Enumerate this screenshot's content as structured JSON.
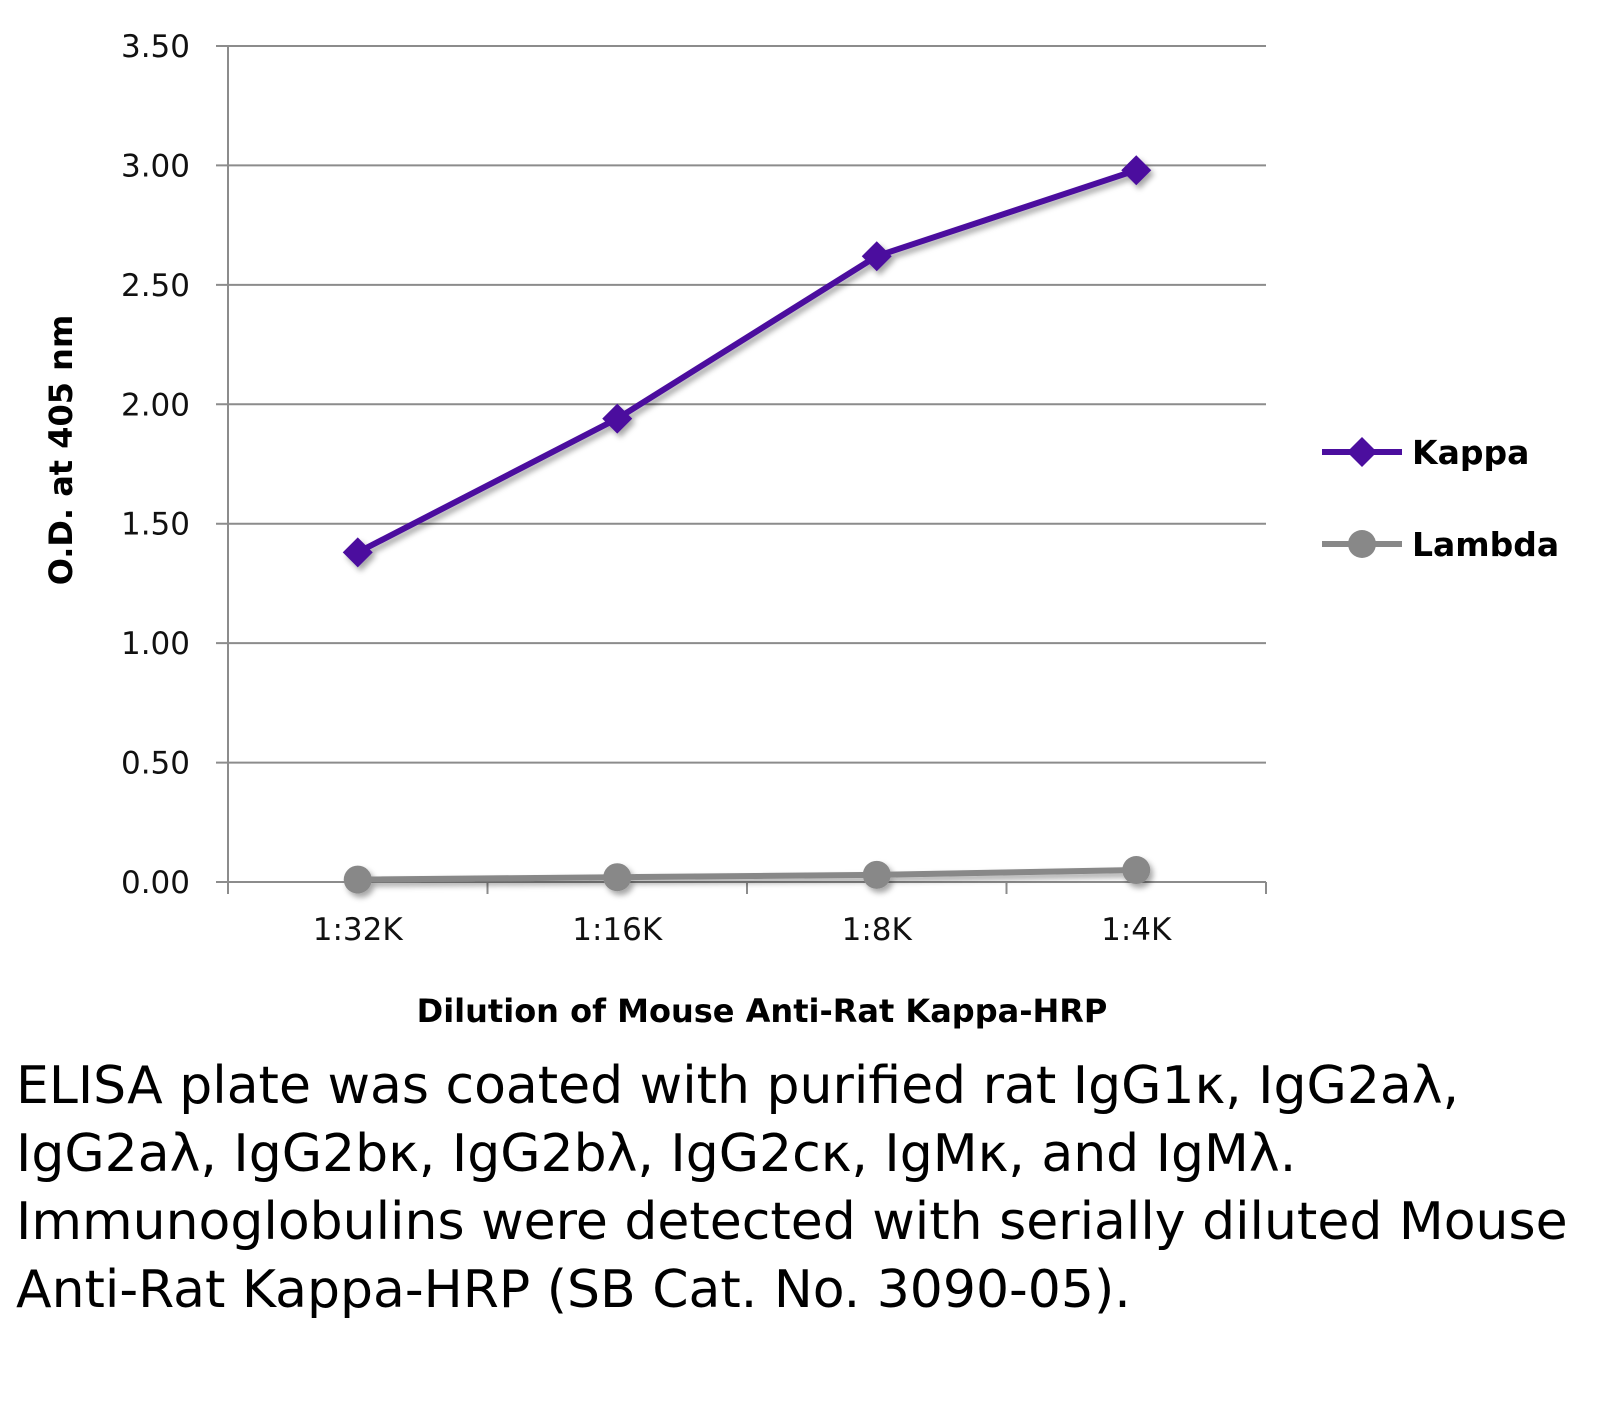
{
  "chart_data": {
    "type": "line",
    "title": "",
    "xlabel": "Dilution of Mouse Anti-Rat Kappa-HRP",
    "ylabel": "O.D. at 405 nm",
    "categories": [
      "1:32K",
      "1:16K",
      "1:8K",
      "1:4K"
    ],
    "ylim": [
      0,
      3.5
    ],
    "yticks": [
      "0.00",
      "0.50",
      "1.00",
      "1.50",
      "2.00",
      "2.50",
      "3.00",
      "3.50"
    ],
    "grid": true,
    "legend_position": "right",
    "series": [
      {
        "name": "Kappa",
        "marker": "diamond",
        "color": "#4B0E9E",
        "values": [
          1.38,
          1.94,
          2.62,
          2.98
        ]
      },
      {
        "name": "Lambda",
        "marker": "circle",
        "color": "#888888",
        "values": [
          0.01,
          0.02,
          0.03,
          0.05
        ]
      }
    ]
  },
  "caption": "ELISA plate was coated with purified rat IgG1κ, IgG2aλ, IgG2aλ, IgG2bκ, IgG2bλ, IgG2cκ, IgMκ, and IgMλ.  Immunoglobulins were detected with serially diluted Mouse Anti-Rat Kappa-HRP (SB Cat. No. 3090-05)."
}
